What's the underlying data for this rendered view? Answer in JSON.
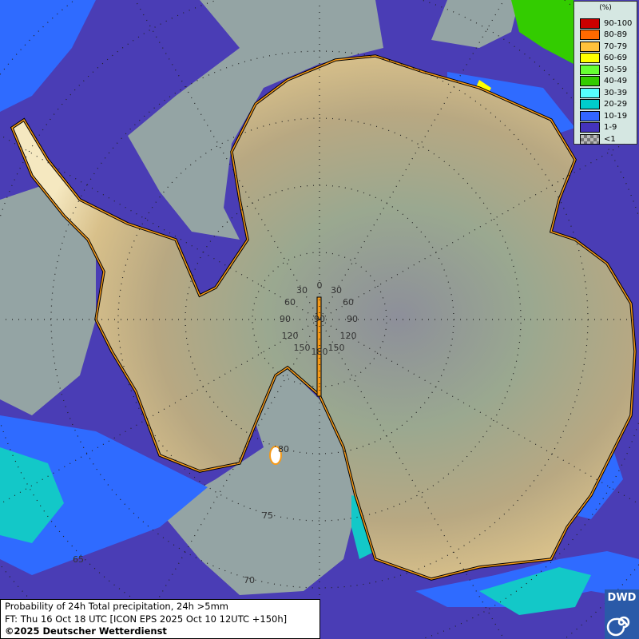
{
  "map": {
    "projection": "polar-stereographic-south",
    "meridian_labels": [
      "0",
      "30",
      "30",
      "60",
      "60",
      "90",
      "90",
      "120",
      "120",
      "150",
      "150",
      "180",
      "90"
    ],
    "latitude_labels": [
      "80",
      "75",
      "70",
      "65"
    ],
    "colors": {
      "ocean_base": "#4a3db5",
      "gray": "#94a4a4",
      "blue": "#2f6bff",
      "cyan": "#13c8c8",
      "coast": "#f59a1a"
    }
  },
  "legend": {
    "title": "(%)",
    "entries": [
      {
        "label": "90-100",
        "color": "#cc0000"
      },
      {
        "label": "80-89",
        "color": "#ff6a00"
      },
      {
        "label": "70-79",
        "color": "#ffc23c"
      },
      {
        "label": "60-69",
        "color": "#ffff00"
      },
      {
        "label": "50-59",
        "color": "#66ff33"
      },
      {
        "label": "40-49",
        "color": "#33cc00"
      },
      {
        "label": "30-39",
        "color": "#55ffff"
      },
      {
        "label": "20-29",
        "color": "#00cccc"
      },
      {
        "label": "10-19",
        "color": "#3366ff"
      },
      {
        "label": "1-9",
        "color": "#4433bb"
      },
      {
        "label": "<1",
        "color": "checker"
      }
    ]
  },
  "caption": {
    "line1": "Probability of 24h Total precipitation, 24h >5mm",
    "line2": "FT: Thu 16 Oct 18 UTC [ICON EPS 2025 Oct 10 12UTC +150h]",
    "line3": "©2025 Deutscher Wetterdienst"
  },
  "logo": {
    "text": "DWD"
  }
}
